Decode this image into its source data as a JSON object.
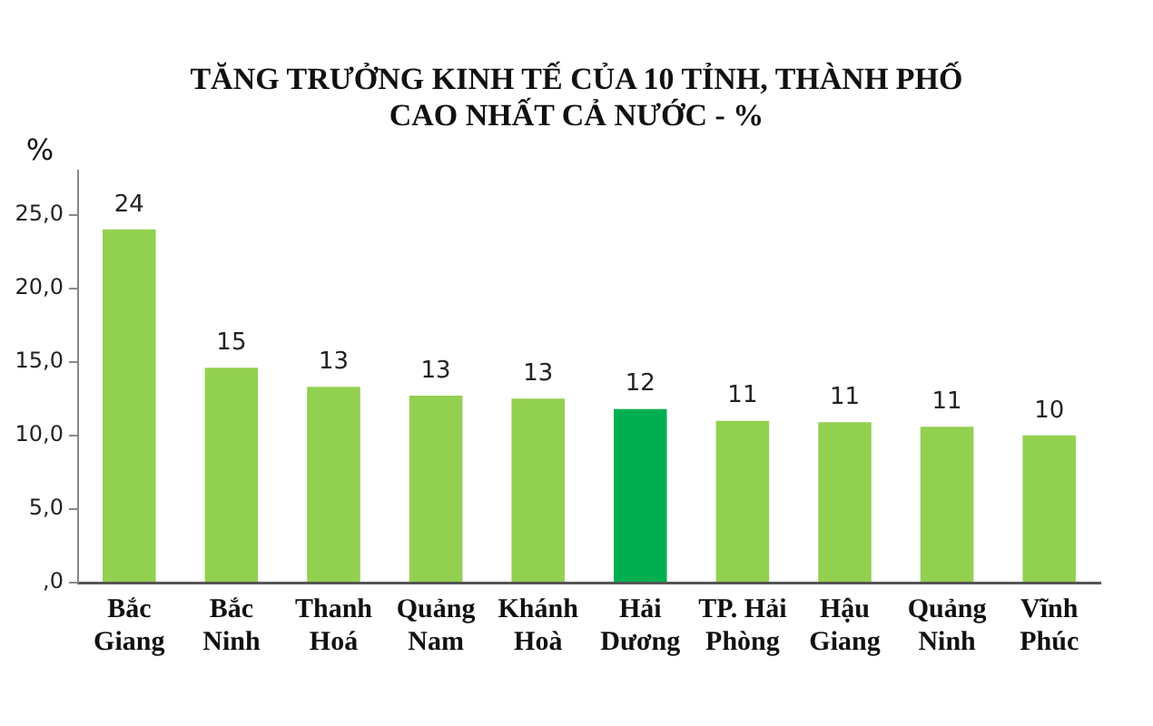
{
  "chart_data": {
    "type": "bar",
    "title": "TĂNG TRƯỞNG KINH TẾ CỦA 10 TỈNH, THÀNH PHỐ CAO NHẤT CẢ NƯỚC - %",
    "ylabel": "%",
    "categories": [
      "Bắc Giang",
      "Bắc Ninh",
      "Thanh Hoá",
      "Quảng Nam",
      "Khánh Hoà",
      "Hải Dương",
      "TP. Hải Phòng",
      "Hậu Giang",
      "Quảng Ninh",
      "Vĩnh Phúc"
    ],
    "values": [
      24.0,
      14.6,
      13.3,
      12.7,
      12.5,
      11.8,
      11.0,
      10.9,
      10.6,
      10.0
    ],
    "colors": [
      "#92d050",
      "#92d050",
      "#92d050",
      "#92d050",
      "#92d050",
      "#00b050",
      "#92d050",
      "#92d050",
      "#92d050",
      "#92d050"
    ],
    "value_labels": [
      "24",
      "15",
      "13",
      "13",
      "13",
      "12",
      "11",
      "11",
      "11",
      "10"
    ],
    "ylim": [
      0,
      28
    ],
    "yticks": [
      {
        "value": 0,
        "label": ",0"
      },
      {
        "value": 5,
        "label": "5,0"
      },
      {
        "value": 10,
        "label": "10,0"
      },
      {
        "value": 15,
        "label": "15,0"
      },
      {
        "value": 20,
        "label": "20,0"
      },
      {
        "value": 25,
        "label": "25,0"
      }
    ]
  }
}
